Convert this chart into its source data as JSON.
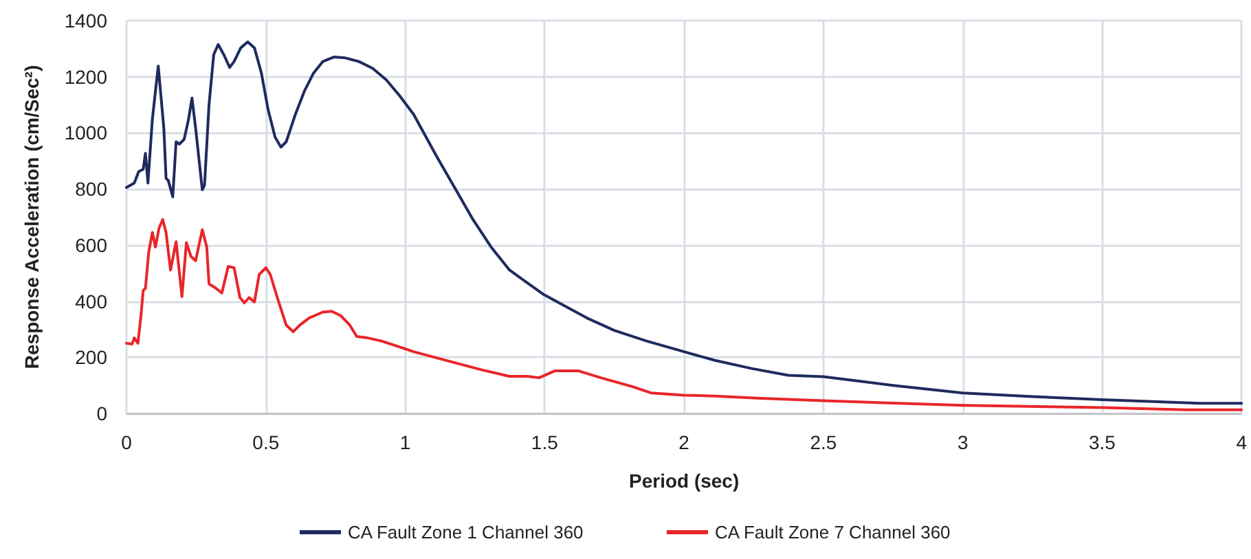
{
  "chart_data": {
    "type": "line",
    "xlabel": "Period (sec)",
    "ylabel": "Response Acceleration (cm/Sec²)",
    "xlim": [
      0,
      4
    ],
    "xticks": [
      0,
      0.5,
      1,
      1.5,
      2,
      2.5,
      3,
      3.5,
      4
    ],
    "ylim": [
      0,
      1400
    ],
    "yticks": [
      0,
      200,
      400,
      600,
      800,
      1000,
      1200,
      1400
    ],
    "grid": true,
    "legend": "bottom",
    "marker": "none",
    "line_style": "solid",
    "series": [
      {
        "name": "CA Fault Zone 1 Channel 360",
        "color": "#1f2b5e",
        "x": [
          0,
          0.028,
          0.044,
          0.06,
          0.068,
          0.077,
          0.093,
          0.114,
          0.134,
          0.142,
          0.15,
          0.166,
          0.178,
          0.19,
          0.207,
          0.223,
          0.235,
          0.248,
          0.272,
          0.28,
          0.296,
          0.313,
          0.329,
          0.349,
          0.37,
          0.386,
          0.41,
          0.435,
          0.459,
          0.484,
          0.508,
          0.533,
          0.554,
          0.573,
          0.606,
          0.638,
          0.671,
          0.704,
          0.744,
          0.785,
          0.834,
          0.883,
          0.932,
          0.98,
          1.03,
          1.111,
          1.177,
          1.243,
          1.308,
          1.374,
          1.431,
          1.493,
          1.57,
          1.652,
          1.75,
          1.866,
          2,
          2.111,
          2.243,
          2.374,
          2.5,
          2.75,
          3,
          3.25,
          3.5,
          3.85,
          4
        ],
        "values": [
          805,
          821,
          862,
          870,
          927,
          821,
          1050,
          1238,
          1017,
          838,
          830,
          772,
          968,
          960,
          977,
          1050,
          1124,
          1017,
          797,
          813,
          1099,
          1279,
          1315,
          1279,
          1233,
          1254,
          1303,
          1324,
          1303,
          1213,
          1083,
          985,
          949,
          968,
          1066,
          1148,
          1213,
          1254,
          1270,
          1267,
          1254,
          1230,
          1189,
          1132,
          1066,
          919,
          805,
          691,
          593,
          511,
          470,
          426,
          384,
          340,
          296,
          258,
          220,
          189,
          160,
          136,
          131,
          100,
          73,
          60,
          49,
          36,
          36
        ]
      },
      {
        "name": "CA Fault Zone 7 Channel 360",
        "color": "#e8262a",
        "x": [
          0,
          0.02,
          0.028,
          0.041,
          0.052,
          0.06,
          0.068,
          0.08,
          0.093,
          0.104,
          0.117,
          0.13,
          0.142,
          0.158,
          0.178,
          0.199,
          0.215,
          0.231,
          0.248,
          0.272,
          0.288,
          0.296,
          0.321,
          0.342,
          0.365,
          0.386,
          0.407,
          0.423,
          0.44,
          0.459,
          0.476,
          0.5,
          0.516,
          0.541,
          0.573,
          0.598,
          0.622,
          0.655,
          0.704,
          0.736,
          0.769,
          0.801,
          0.826,
          0.866,
          0.915,
          0.964,
          1.03,
          1.161,
          1.275,
          1.374,
          1.439,
          1.48,
          1.538,
          1.62,
          1.702,
          1.816,
          1.882,
          2,
          2.111,
          2.275,
          2.5,
          3,
          3.5,
          3.8,
          4
        ],
        "values": [
          250,
          247,
          269,
          250,
          348,
          438,
          446,
          576,
          645,
          593,
          661,
          691,
          645,
          511,
          612,
          416,
          609,
          560,
          544,
          655,
          593,
          462,
          446,
          429,
          524,
          519,
          413,
          394,
          413,
          397,
          495,
          519,
          495,
          413,
          315,
          291,
          315,
          340,
          361,
          364,
          348,
          315,
          274,
          269,
          258,
          242,
          220,
          185,
          155,
          132,
          132,
          127,
          152,
          152,
          127,
          95,
          73,
          65,
          62,
          54,
          45,
          29,
          21,
          13,
          13
        ]
      }
    ]
  }
}
